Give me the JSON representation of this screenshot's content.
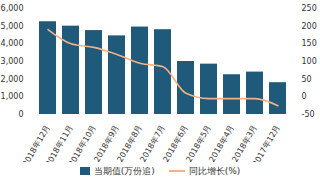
{
  "chart_data": {
    "type": "bar",
    "categories": [
      "2018年12月",
      "2018年11月",
      "2018年10月",
      "2018年9月",
      "2018年8月",
      "2018年7月",
      "2018年6月",
      "2018年5月",
      "2018年4月",
      "2018年3月",
      "2017年12月"
    ],
    "series": [
      {
        "name": "当期值(万份追)",
        "type": "bar",
        "color": "#1f5a7a",
        "values": [
          5250,
          5000,
          4750,
          4450,
          4950,
          4800,
          3000,
          2850,
          2250,
          2400,
          1800
        ]
      },
      {
        "name": "同比增长(%)",
        "type": "line",
        "color": "#f4b183",
        "axis": "y2",
        "values": [
          190,
          150,
          140,
          120,
          95,
          85,
          10,
          -5,
          -5,
          -5,
          -25
        ]
      }
    ],
    "ylim": [
      0,
      6000
    ],
    "yticks": [
      0,
      1000,
      2000,
      3000,
      4000,
      5000,
      6000
    ],
    "y2lim": [
      -50,
      250
    ],
    "y2ticks": [
      -50,
      0,
      50,
      100,
      150,
      200,
      250
    ],
    "legend": "bottom",
    "grid": false
  }
}
